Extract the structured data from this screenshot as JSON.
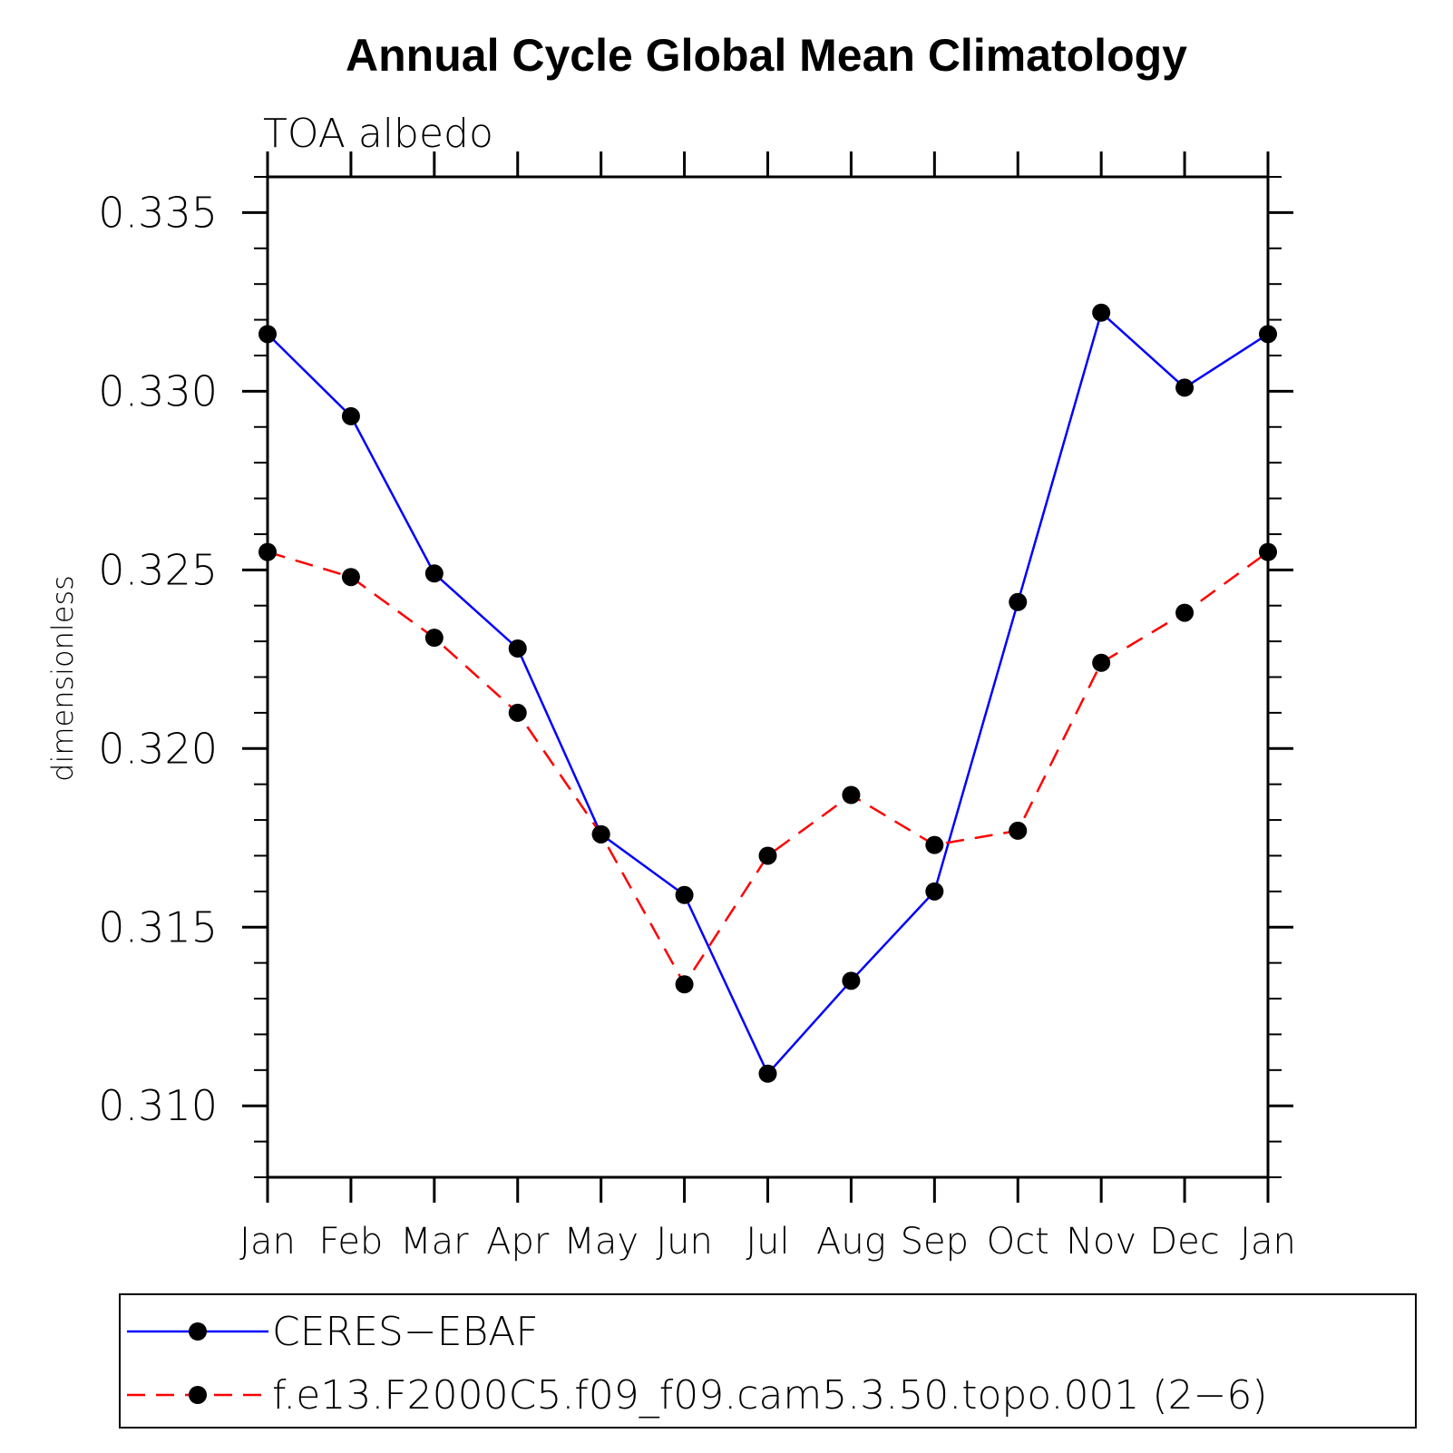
{
  "chart_data": {
    "type": "line",
    "title": "Annual Cycle Global Mean Climatology",
    "subtitle": "TOA albedo",
    "xlabel": "",
    "ylabel": "dimensionless",
    "categories": [
      "Jan",
      "Feb",
      "Mar",
      "Apr",
      "May",
      "Jun",
      "Jul",
      "Aug",
      "Sep",
      "Oct",
      "Nov",
      "Dec",
      "Jan"
    ],
    "ylim": [
      0.308,
      0.336
    ],
    "yticks": [
      0.31,
      0.315,
      0.32,
      0.325,
      0.33,
      0.335
    ],
    "ytick_labels": [
      "0.310",
      "0.315",
      "0.320",
      "0.325",
      "0.330",
      "0.335"
    ],
    "grid": false,
    "legend_position": "bottom",
    "series": [
      {
        "name": "CERES−EBAF",
        "color": "#0000ff",
        "dash": "solid",
        "marker": "filled-circle",
        "values": [
          0.3316,
          0.3293,
          0.3249,
          0.3228,
          0.3176,
          0.3159,
          0.3109,
          0.3135,
          0.316,
          0.3241,
          0.3322,
          0.3301,
          0.3316
        ]
      },
      {
        "name": "f.e13.F2000C5.f09_f09.cam5.3.50.topo.001 (2−6)",
        "color": "#ff0000",
        "dash": "dashed",
        "marker": "filled-circle",
        "values": [
          0.3255,
          0.3248,
          0.3231,
          0.321,
          0.3176,
          0.3134,
          0.317,
          0.3187,
          0.3173,
          0.3177,
          0.3224,
          0.3238,
          0.3255
        ]
      }
    ]
  }
}
